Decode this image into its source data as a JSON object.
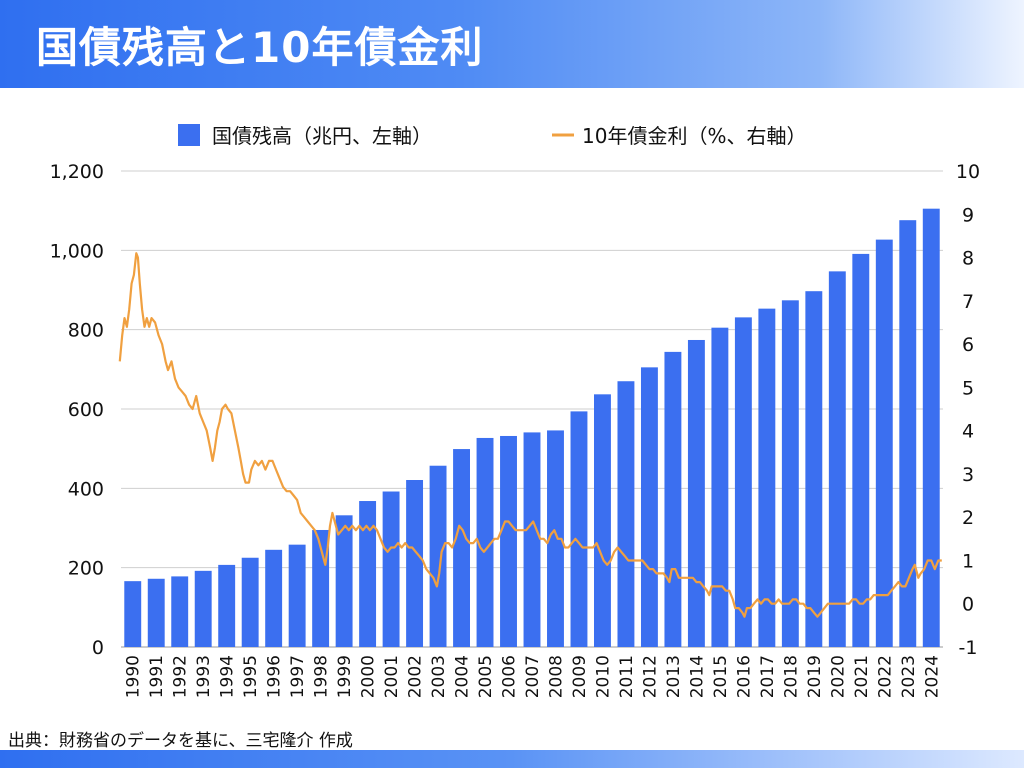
{
  "header": {
    "title": "国債残高と10年債金利"
  },
  "footer": {
    "source": "出典：財務省のデータを基に、三宅隆介 作成"
  },
  "colors": {
    "bar": "#3b6ff0",
    "line": "#f0a040",
    "grid": "#cfcfcf",
    "header": "#2f6ff0"
  },
  "chart_data": {
    "type": "bar+line",
    "legend": [
      {
        "label": "国債残高（兆円、左軸）",
        "marker": "square",
        "color": "#3b6ff0"
      },
      {
        "label": "10年債金利（%、右軸）",
        "marker": "line",
        "color": "#f0a040"
      }
    ],
    "legend_position": "top-center",
    "grid": true,
    "categories": [
      "1990",
      "1991",
      "1992",
      "1993",
      "1994",
      "1995",
      "1996",
      "1997",
      "1998",
      "1999",
      "2000",
      "2001",
      "2002",
      "2003",
      "2004",
      "2005",
      "2006",
      "2007",
      "2008",
      "2009",
      "2010",
      "2011",
      "2012",
      "2013",
      "2014",
      "2015",
      "2016",
      "2017",
      "2018",
      "2019",
      "2020",
      "2021",
      "2022",
      "2023",
      "2024"
    ],
    "y_left": {
      "range": [
        0,
        1200
      ],
      "ticks": [
        "0",
        "200",
        "400",
        "600",
        "800",
        "1,000",
        "1,200"
      ],
      "tick_values": [
        0,
        200,
        400,
        600,
        800,
        1000,
        1200
      ]
    },
    "y_right": {
      "range": [
        -1,
        10
      ],
      "ticks": [
        "-1",
        "0",
        "1",
        "2",
        "3",
        "4",
        "5",
        "6",
        "7",
        "8",
        "9",
        "10"
      ],
      "tick_values": [
        -1,
        0,
        1,
        2,
        3,
        4,
        5,
        6,
        7,
        8,
        9,
        10
      ]
    },
    "bars": {
      "name": "国債残高（兆円、左軸）",
      "values": [
        166,
        172,
        178,
        192,
        207,
        225,
        245,
        258,
        295,
        332,
        368,
        392,
        421,
        457,
        499,
        527,
        532,
        541,
        546,
        594,
        637,
        670,
        705,
        744,
        774,
        805,
        831,
        853,
        874,
        897,
        947,
        991,
        1027,
        1076,
        1105
      ]
    },
    "line": {
      "name": "10年債金利（%、右軸）",
      "points": [
        [
          1989.95,
          5.6
        ],
        [
          1990.05,
          6.2
        ],
        [
          1990.15,
          6.6
        ],
        [
          1990.25,
          6.4
        ],
        [
          1990.35,
          6.8
        ],
        [
          1990.45,
          7.4
        ],
        [
          1990.55,
          7.6
        ],
        [
          1990.65,
          8.1
        ],
        [
          1990.72,
          8.0
        ],
        [
          1990.8,
          7.4
        ],
        [
          1990.9,
          6.8
        ],
        [
          1991.0,
          6.4
        ],
        [
          1991.1,
          6.6
        ],
        [
          1991.2,
          6.4
        ],
        [
          1991.3,
          6.6
        ],
        [
          1991.45,
          6.5
        ],
        [
          1991.6,
          6.2
        ],
        [
          1991.75,
          6.0
        ],
        [
          1991.9,
          5.6
        ],
        [
          1992.0,
          5.4
        ],
        [
          1992.15,
          5.6
        ],
        [
          1992.3,
          5.2
        ],
        [
          1992.45,
          5.0
        ],
        [
          1992.6,
          4.9
        ],
        [
          1992.75,
          4.8
        ],
        [
          1992.9,
          4.6
        ],
        [
          1993.05,
          4.5
        ],
        [
          1993.2,
          4.8
        ],
        [
          1993.35,
          4.4
        ],
        [
          1993.5,
          4.2
        ],
        [
          1993.65,
          4.0
        ],
        [
          1993.8,
          3.6
        ],
        [
          1993.9,
          3.3
        ],
        [
          1994.0,
          3.6
        ],
        [
          1994.1,
          4.0
        ],
        [
          1994.2,
          4.2
        ],
        [
          1994.3,
          4.5
        ],
        [
          1994.45,
          4.6
        ],
        [
          1994.55,
          4.5
        ],
        [
          1994.7,
          4.4
        ],
        [
          1994.85,
          4.0
        ],
        [
          1995.0,
          3.6
        ],
        [
          1995.1,
          3.3
        ],
        [
          1995.2,
          3.0
        ],
        [
          1995.3,
          2.8
        ],
        [
          1995.45,
          2.8
        ],
        [
          1995.55,
          3.1
        ],
        [
          1995.7,
          3.3
        ],
        [
          1995.85,
          3.2
        ],
        [
          1996.0,
          3.3
        ],
        [
          1996.15,
          3.1
        ],
        [
          1996.3,
          3.3
        ],
        [
          1996.45,
          3.3
        ],
        [
          1996.6,
          3.1
        ],
        [
          1996.75,
          2.9
        ],
        [
          1996.9,
          2.7
        ],
        [
          1997.05,
          2.6
        ],
        [
          1997.2,
          2.6
        ],
        [
          1997.35,
          2.5
        ],
        [
          1997.5,
          2.4
        ],
        [
          1997.65,
          2.1
        ],
        [
          1997.8,
          2.0
        ],
        [
          1997.95,
          1.9
        ],
        [
          1998.1,
          1.8
        ],
        [
          1998.25,
          1.7
        ],
        [
          1998.4,
          1.5
        ],
        [
          1998.55,
          1.2
        ],
        [
          1998.7,
          0.9
        ],
        [
          1998.8,
          1.3
        ],
        [
          1998.9,
          1.8
        ],
        [
          1999.0,
          2.1
        ],
        [
          1999.1,
          1.9
        ],
        [
          1999.25,
          1.6
        ],
        [
          1999.4,
          1.7
        ],
        [
          1999.55,
          1.8
        ],
        [
          1999.7,
          1.7
        ],
        [
          1999.85,
          1.8
        ],
        [
          2000.0,
          1.7
        ],
        [
          2000.15,
          1.8
        ],
        [
          2000.3,
          1.7
        ],
        [
          2000.45,
          1.8
        ],
        [
          2000.6,
          1.7
        ],
        [
          2000.75,
          1.8
        ],
        [
          2000.9,
          1.7
        ],
        [
          2001.05,
          1.5
        ],
        [
          2001.2,
          1.3
        ],
        [
          2001.35,
          1.2
        ],
        [
          2001.5,
          1.3
        ],
        [
          2001.65,
          1.3
        ],
        [
          2001.8,
          1.4
        ],
        [
          2001.95,
          1.3
        ],
        [
          2002.1,
          1.4
        ],
        [
          2002.25,
          1.3
        ],
        [
          2002.4,
          1.3
        ],
        [
          2002.55,
          1.2
        ],
        [
          2002.7,
          1.1
        ],
        [
          2002.85,
          1.0
        ],
        [
          2003.0,
          0.8
        ],
        [
          2003.15,
          0.7
        ],
        [
          2003.3,
          0.6
        ],
        [
          2003.45,
          0.4
        ],
        [
          2003.55,
          0.7
        ],
        [
          2003.65,
          1.2
        ],
        [
          2003.8,
          1.4
        ],
        [
          2003.95,
          1.4
        ],
        [
          2004.1,
          1.3
        ],
        [
          2004.25,
          1.5
        ],
        [
          2004.4,
          1.8
        ],
        [
          2004.55,
          1.7
        ],
        [
          2004.7,
          1.5
        ],
        [
          2004.85,
          1.4
        ],
        [
          2005.0,
          1.4
        ],
        [
          2005.15,
          1.5
        ],
        [
          2005.3,
          1.3
        ],
        [
          2005.45,
          1.2
        ],
        [
          2005.6,
          1.3
        ],
        [
          2005.75,
          1.4
        ],
        [
          2005.9,
          1.5
        ],
        [
          2006.05,
          1.5
        ],
        [
          2006.2,
          1.7
        ],
        [
          2006.35,
          1.9
        ],
        [
          2006.5,
          1.9
        ],
        [
          2006.65,
          1.8
        ],
        [
          2006.8,
          1.7
        ],
        [
          2006.95,
          1.7
        ],
        [
          2007.1,
          1.7
        ],
        [
          2007.25,
          1.7
        ],
        [
          2007.4,
          1.8
        ],
        [
          2007.55,
          1.9
        ],
        [
          2007.7,
          1.7
        ],
        [
          2007.85,
          1.5
        ],
        [
          2008.0,
          1.5
        ],
        [
          2008.15,
          1.4
        ],
        [
          2008.3,
          1.6
        ],
        [
          2008.45,
          1.7
        ],
        [
          2008.6,
          1.5
        ],
        [
          2008.75,
          1.5
        ],
        [
          2008.9,
          1.3
        ],
        [
          2009.05,
          1.3
        ],
        [
          2009.2,
          1.4
        ],
        [
          2009.35,
          1.5
        ],
        [
          2009.5,
          1.4
        ],
        [
          2009.65,
          1.3
        ],
        [
          2009.8,
          1.3
        ],
        [
          2009.95,
          1.3
        ],
        [
          2010.1,
          1.3
        ],
        [
          2010.25,
          1.4
        ],
        [
          2010.4,
          1.2
        ],
        [
          2010.55,
          1.0
        ],
        [
          2010.7,
          0.9
        ],
        [
          2010.85,
          1.0
        ],
        [
          2011.0,
          1.2
        ],
        [
          2011.15,
          1.3
        ],
        [
          2011.3,
          1.2
        ],
        [
          2011.45,
          1.1
        ],
        [
          2011.6,
          1.0
        ],
        [
          2011.75,
          1.0
        ],
        [
          2011.9,
          1.0
        ],
        [
          2012.05,
          1.0
        ],
        [
          2012.2,
          1.0
        ],
        [
          2012.35,
          0.9
        ],
        [
          2012.5,
          0.8
        ],
        [
          2012.65,
          0.8
        ],
        [
          2012.8,
          0.7
        ],
        [
          2012.95,
          0.7
        ],
        [
          2013.1,
          0.7
        ],
        [
          2013.25,
          0.6
        ],
        [
          2013.35,
          0.5
        ],
        [
          2013.45,
          0.8
        ],
        [
          2013.6,
          0.8
        ],
        [
          2013.75,
          0.6
        ],
        [
          2013.9,
          0.6
        ],
        [
          2014.05,
          0.6
        ],
        [
          2014.2,
          0.6
        ],
        [
          2014.35,
          0.6
        ],
        [
          2014.5,
          0.5
        ],
        [
          2014.65,
          0.5
        ],
        [
          2014.8,
          0.4
        ],
        [
          2014.95,
          0.3
        ],
        [
          2015.05,
          0.2
        ],
        [
          2015.15,
          0.4
        ],
        [
          2015.3,
          0.4
        ],
        [
          2015.45,
          0.4
        ],
        [
          2015.6,
          0.4
        ],
        [
          2015.75,
          0.3
        ],
        [
          2015.9,
          0.3
        ],
        [
          2016.05,
          0.1
        ],
        [
          2016.15,
          -0.1
        ],
        [
          2016.3,
          -0.1
        ],
        [
          2016.45,
          -0.2
        ],
        [
          2016.55,
          -0.3
        ],
        [
          2016.65,
          -0.1
        ],
        [
          2016.8,
          -0.1
        ],
        [
          2016.95,
          0.0
        ],
        [
          2017.1,
          0.1
        ],
        [
          2017.25,
          0.0
        ],
        [
          2017.4,
          0.1
        ],
        [
          2017.55,
          0.1
        ],
        [
          2017.7,
          0.0
        ],
        [
          2017.85,
          0.0
        ],
        [
          2018.0,
          0.1
        ],
        [
          2018.15,
          0.0
        ],
        [
          2018.3,
          0.0
        ],
        [
          2018.45,
          0.0
        ],
        [
          2018.6,
          0.1
        ],
        [
          2018.75,
          0.1
        ],
        [
          2018.9,
          0.0
        ],
        [
          2019.05,
          0.0
        ],
        [
          2019.2,
          -0.1
        ],
        [
          2019.35,
          -0.1
        ],
        [
          2019.5,
          -0.2
        ],
        [
          2019.65,
          -0.3
        ],
        [
          2019.8,
          -0.2
        ],
        [
          2019.95,
          -0.1
        ],
        [
          2020.1,
          0.0
        ],
        [
          2020.25,
          0.0
        ],
        [
          2020.4,
          0.0
        ],
        [
          2020.55,
          0.0
        ],
        [
          2020.7,
          0.0
        ],
        [
          2020.85,
          0.0
        ],
        [
          2021.0,
          0.0
        ],
        [
          2021.15,
          0.1
        ],
        [
          2021.3,
          0.1
        ],
        [
          2021.45,
          0.0
        ],
        [
          2021.6,
          0.0
        ],
        [
          2021.75,
          0.1
        ],
        [
          2021.9,
          0.1
        ],
        [
          2022.05,
          0.2
        ],
        [
          2022.2,
          0.2
        ],
        [
          2022.35,
          0.2
        ],
        [
          2022.5,
          0.2
        ],
        [
          2022.65,
          0.2
        ],
        [
          2022.8,
          0.3
        ],
        [
          2022.95,
          0.4
        ],
        [
          2023.1,
          0.5
        ],
        [
          2023.25,
          0.4
        ],
        [
          2023.4,
          0.4
        ],
        [
          2023.55,
          0.6
        ],
        [
          2023.7,
          0.8
        ],
        [
          2023.8,
          0.9
        ],
        [
          2023.95,
          0.6
        ],
        [
          2024.05,
          0.7
        ],
        [
          2024.2,
          0.8
        ],
        [
          2024.35,
          1.0
        ],
        [
          2024.5,
          1.0
        ],
        [
          2024.65,
          0.8
        ],
        [
          2024.8,
          1.0
        ],
        [
          2024.95,
          1.0
        ]
      ]
    }
  }
}
